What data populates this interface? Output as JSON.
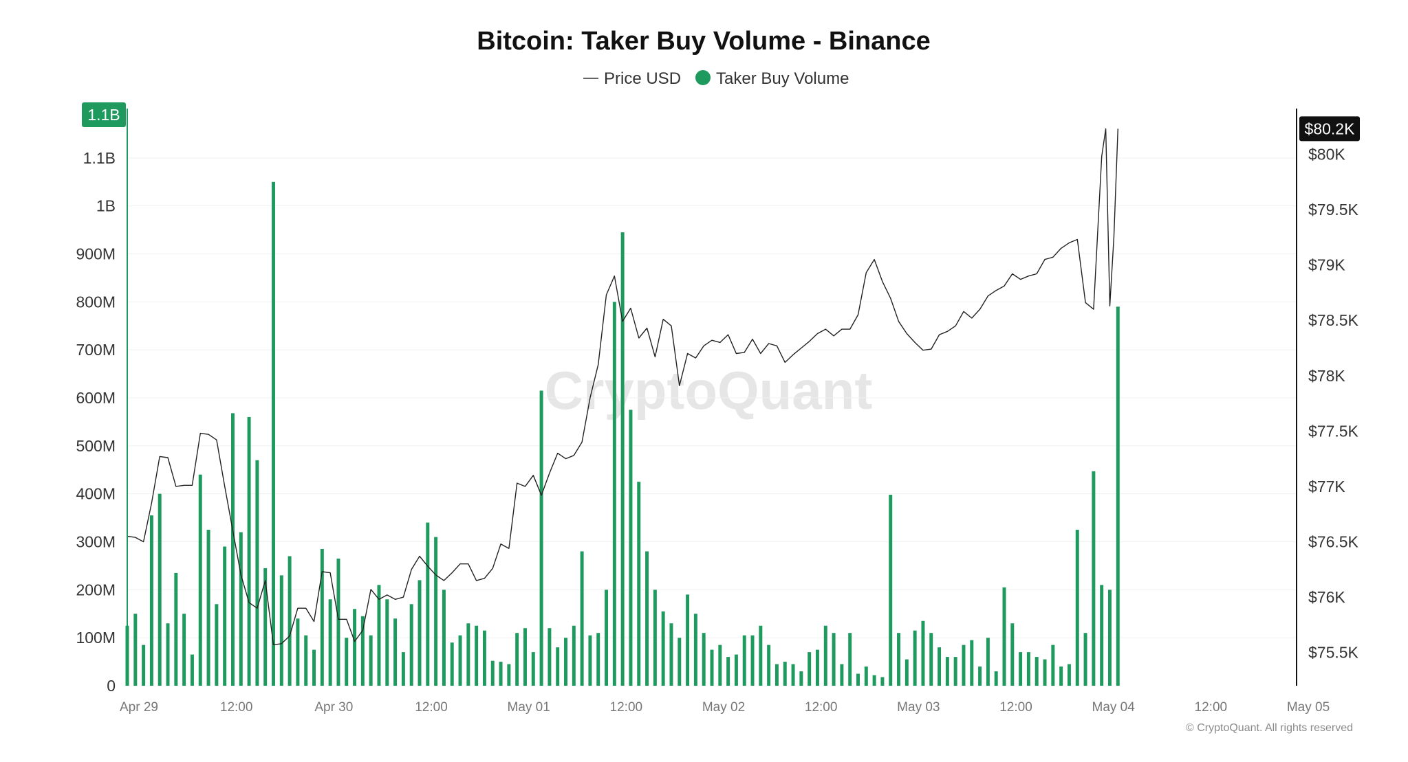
{
  "chart_data": {
    "type": "bar",
    "title": "Bitcoin: Taker Buy Volume - Binance",
    "legend": {
      "position": "top-center",
      "items": [
        {
          "name": "Price USD",
          "marker": "line",
          "color": "#222222"
        },
        {
          "name": "Taker Buy Volume",
          "marker": "dot",
          "color": "#1f9a5f"
        }
      ]
    },
    "watermark": "CryptoQuant",
    "copyright": "© CryptoQuant. All rights reserved",
    "grid": true,
    "colors": {
      "bar": "#1f9a5f",
      "line": "#222222",
      "left_axis": "#1f9a5f",
      "right_axis": "#111111",
      "price_badge": "#111111"
    },
    "x_axis": {
      "start": "Apr 29 00:00",
      "end": "May 05 00:00",
      "ticks": [
        {
          "t": 0,
          "label": "Apr 29"
        },
        {
          "t": 12,
          "label": "12:00"
        },
        {
          "t": 24,
          "label": "Apr 30"
        },
        {
          "t": 36,
          "label": "12:00"
        },
        {
          "t": 48,
          "label": "May 01"
        },
        {
          "t": 60,
          "label": "12:00"
        },
        {
          "t": 72,
          "label": "May 02"
        },
        {
          "t": 84,
          "label": "12:00"
        },
        {
          "t": 96,
          "label": "May 03"
        },
        {
          "t": 108,
          "label": "12:00"
        },
        {
          "t": 120,
          "label": "May 04"
        },
        {
          "t": 132,
          "label": "12:00"
        },
        {
          "t": 144,
          "label": "May 05"
        }
      ]
    },
    "y_left": {
      "label": "",
      "min": 0,
      "max": 1200000000,
      "ticks": [
        {
          "v": 0,
          "label": "0"
        },
        {
          "v": 100000000,
          "label": "100M"
        },
        {
          "v": 200000000,
          "label": "200M"
        },
        {
          "v": 300000000,
          "label": "300M"
        },
        {
          "v": 400000000,
          "label": "400M"
        },
        {
          "v": 500000000,
          "label": "500M"
        },
        {
          "v": 600000000,
          "label": "600M"
        },
        {
          "v": 700000000,
          "label": "700M"
        },
        {
          "v": 800000000,
          "label": "800M"
        },
        {
          "v": 900000000,
          "label": "900M"
        },
        {
          "v": 1000000000,
          "label": "1B"
        },
        {
          "v": 1100000000,
          "label": "1.1B"
        }
      ],
      "current_badge": {
        "label": "1.1B",
        "v": 1190000000
      }
    },
    "y_right": {
      "label": "",
      "min": 75200,
      "max": 80400,
      "ticks": [
        {
          "v": 75500,
          "label": "$75.5K"
        },
        {
          "v": 76000,
          "label": "$76K"
        },
        {
          "v": 76500,
          "label": "$76.5K"
        },
        {
          "v": 77000,
          "label": "$77K"
        },
        {
          "v": 77500,
          "label": "$77.5K"
        },
        {
          "v": 78000,
          "label": "$78K"
        },
        {
          "v": 78500,
          "label": "$78.5K"
        },
        {
          "v": 79000,
          "label": "$79K"
        },
        {
          "v": 79500,
          "label": "$79.5K"
        },
        {
          "v": 80000,
          "label": "$80K"
        }
      ],
      "current_badge": {
        "label": "$80.2K",
        "v": 80230
      }
    },
    "series": [
      {
        "name": "Taker Buy Volume",
        "kind": "bar",
        "axis": "left",
        "unit": "USD",
        "t": [
          0,
          1,
          2,
          3,
          4,
          5,
          6,
          7,
          8,
          9,
          10,
          11,
          12,
          13,
          14,
          15,
          16,
          17,
          18,
          19,
          20,
          21,
          22,
          23,
          24,
          25,
          26,
          27,
          28,
          29,
          30,
          31,
          32,
          33,
          34,
          35,
          36,
          37,
          38,
          39,
          40,
          41,
          42,
          43,
          44,
          45,
          46,
          47,
          48,
          49,
          50,
          51,
          52,
          53,
          54,
          55,
          56,
          57,
          58,
          59,
          60,
          61,
          62,
          63,
          64,
          65,
          66,
          67,
          68,
          69,
          70,
          71,
          72,
          73,
          74,
          75,
          76,
          77,
          78,
          79,
          80,
          81,
          82,
          83,
          84,
          85,
          86,
          87,
          88,
          89,
          90,
          91,
          92,
          93,
          94,
          95,
          96,
          97,
          98,
          99,
          100,
          101,
          102,
          103,
          104,
          105,
          106,
          107,
          108,
          109,
          110,
          111,
          112,
          113,
          114,
          115,
          116,
          117,
          118,
          119,
          120,
          121,
          122
        ],
        "values": [
          125000000,
          150000000,
          85000000,
          355000000,
          400000000,
          130000000,
          235000000,
          150000000,
          65000000,
          440000000,
          325000000,
          170000000,
          290000000,
          568000000,
          320000000,
          560000000,
          470000000,
          245000000,
          1050000000,
          230000000,
          270000000,
          140000000,
          105000000,
          75000000,
          285000000,
          180000000,
          265000000,
          100000000,
          160000000,
          145000000,
          105000000,
          210000000,
          180000000,
          140000000,
          70000000,
          170000000,
          220000000,
          340000000,
          310000000,
          200000000,
          90000000,
          105000000,
          130000000,
          125000000,
          115000000,
          52000000,
          50000000,
          45000000,
          110000000,
          120000000,
          70000000,
          615000000,
          120000000,
          80000000,
          100000000,
          125000000,
          280000000,
          105000000,
          110000000,
          200000000,
          800000000,
          945000000,
          575000000,
          425000000,
          280000000,
          200000000,
          155000000,
          130000000,
          100000000,
          190000000,
          150000000,
          110000000,
          75000000,
          85000000,
          60000000,
          65000000,
          105000000,
          105000000,
          125000000,
          85000000,
          45000000,
          50000000,
          45000000,
          30000000,
          70000000,
          75000000,
          125000000,
          110000000,
          45000000,
          110000000,
          25000000,
          40000000,
          22000000,
          18000000,
          398000000,
          110000000,
          55000000,
          115000000,
          135000000,
          110000000,
          80000000,
          60000000,
          60000000,
          85000000,
          95000000,
          40000000,
          100000000,
          30000000,
          205000000,
          130000000,
          70000000,
          70000000,
          60000000,
          55000000,
          85000000,
          40000000,
          45000000,
          325000000,
          110000000,
          447000000,
          210000000,
          200000000,
          790000000
        ]
      },
      {
        "name": "Price USD",
        "kind": "line",
        "axis": "right",
        "t": [
          0,
          1,
          2,
          3,
          4,
          5,
          6,
          7,
          8,
          9,
          10,
          11,
          12,
          13,
          14,
          15,
          16,
          17,
          18,
          19,
          20,
          21,
          22,
          23,
          24,
          25,
          26,
          27,
          28,
          29,
          30,
          31,
          32,
          33,
          34,
          35,
          36,
          37,
          38,
          39,
          40,
          41,
          42,
          43,
          44,
          45,
          46,
          47,
          48,
          49,
          50,
          51,
          52,
          53,
          54,
          55,
          56,
          57,
          58,
          59,
          60,
          61,
          62,
          63,
          64,
          65,
          66,
          67,
          68,
          69,
          70,
          71,
          72,
          73,
          74,
          75,
          76,
          77,
          78,
          79,
          80,
          81,
          82,
          83,
          84,
          85,
          86,
          87,
          88,
          89,
          90,
          91,
          92,
          93,
          94,
          95,
          96,
          97,
          98,
          99,
          100,
          101,
          102,
          103,
          104,
          105,
          106,
          107,
          108,
          109,
          110,
          111,
          112,
          113,
          114,
          115,
          116,
          117,
          118,
          119,
          120,
          120.5,
          121,
          121.5,
          122
        ],
        "values": [
          76550,
          76540,
          76500,
          76850,
          77270,
          77260,
          77000,
          77010,
          77010,
          77480,
          77470,
          77420,
          77000,
          76600,
          76200,
          75950,
          75900,
          76150,
          75570,
          75580,
          75650,
          75900,
          75900,
          75780,
          76230,
          76220,
          75800,
          75800,
          75600,
          75700,
          76070,
          75980,
          76020,
          75980,
          76000,
          76250,
          76370,
          76280,
          76200,
          76150,
          76220,
          76300,
          76300,
          76150,
          76170,
          76260,
          76480,
          76440,
          77030,
          77000,
          77100,
          76920,
          77120,
          77300,
          77250,
          77280,
          77400,
          77800,
          78100,
          78730,
          78900,
          78490,
          78610,
          78340,
          78430,
          78170,
          78510,
          78450,
          77910,
          78200,
          78160,
          78270,
          78320,
          78300,
          78370,
          78200,
          78210,
          78330,
          78200,
          78290,
          78270,
          78120,
          78190,
          78250,
          78310,
          78380,
          78420,
          78360,
          78420,
          78420,
          78550,
          78930,
          79050,
          78850,
          78700,
          78490,
          78380,
          78300,
          78230,
          78240,
          78370,
          78400,
          78450,
          78580,
          78520,
          78600,
          78720,
          78770,
          78810,
          78920,
          78870,
          78900,
          78920,
          79050,
          79070,
          79150,
          79200,
          79230,
          78660,
          78600,
          79980,
          80230,
          78630,
          79250,
          80230
        ]
      }
    ]
  }
}
